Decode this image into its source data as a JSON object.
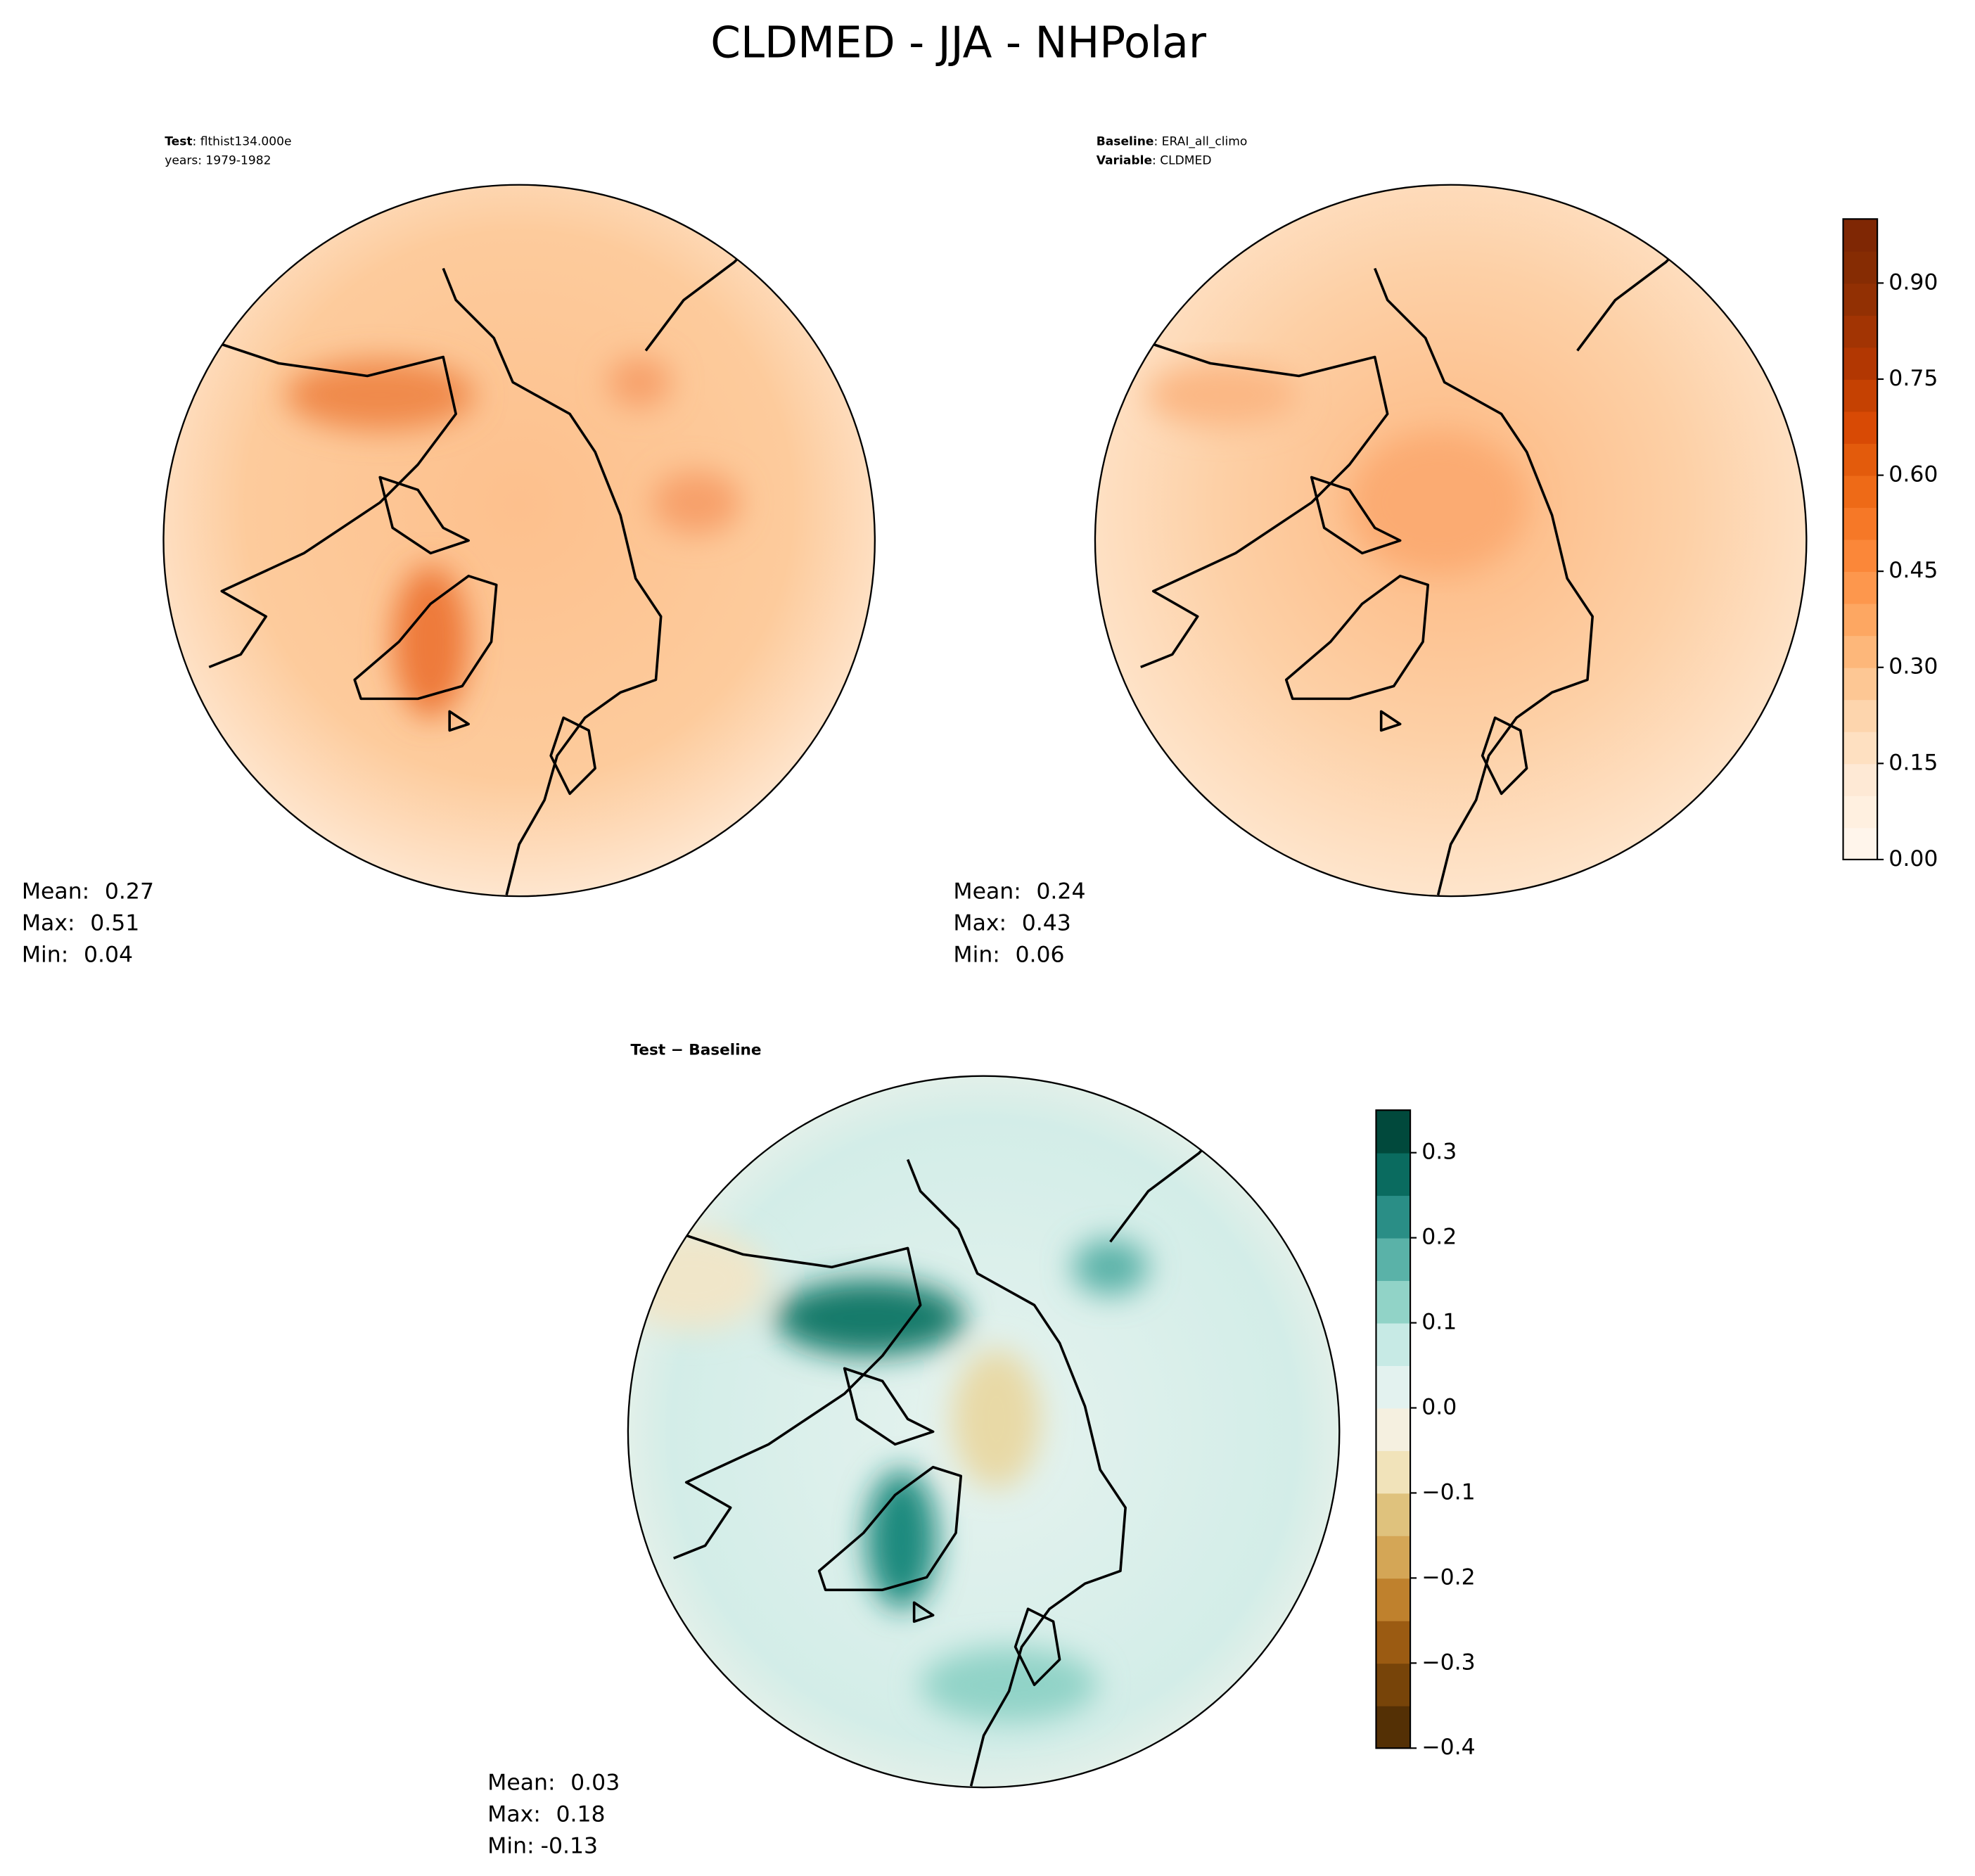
{
  "title": "CLDMED - JJA - NHPolar",
  "chart_data": [
    {
      "type": "map",
      "header": [
        {
          "key": "Test",
          "text": ": flthist134.000e"
        },
        {
          "text": "years: 1979-1982"
        }
      ],
      "stats": [
        {
          "label": "Mean:",
          "value": 0.27
        },
        {
          "label": "Max:",
          "value": 0.51
        },
        {
          "label": "Min:",
          "value": 0.04
        }
      ]
    },
    {
      "type": "map",
      "header": [
        {
          "key": "Baseline",
          "text": ": ERAI_all_climo"
        },
        {
          "key": "Variable",
          "text": ": CLDMED"
        }
      ],
      "stats": [
        {
          "label": "Mean:",
          "value": 0.24
        },
        {
          "label": "Max:",
          "value": 0.43
        },
        {
          "label": "Min:",
          "value": 0.06
        }
      ],
      "colorbar": {
        "ylim": [
          0,
          1.0
        ],
        "yticks": [
          {
            "value": 0,
            "label": "0.00"
          },
          {
            "value": 0.15,
            "label": "0.15"
          },
          {
            "value": 0.3,
            "label": "0.30"
          },
          {
            "value": 0.45,
            "label": "0.45"
          },
          {
            "value": 0.6,
            "label": "0.60"
          },
          {
            "value": 0.75,
            "label": "0.75"
          },
          {
            "value": 0.9,
            "label": "0.90"
          }
        ],
        "colors": [
          "#fff5eb",
          "#fff0e0",
          "#fee9d5",
          "#fee0c1",
          "#fdd5ad",
          "#fdc794",
          "#fdb77a",
          "#fda762",
          "#fd974d",
          "#fb8739",
          "#f67827",
          "#ee6a17",
          "#e35b0c",
          "#d84a05",
          "#c54102",
          "#b23702",
          "#a23403",
          "#923003",
          "#862c03",
          "#7f2704"
        ]
      }
    },
    {
      "type": "map",
      "title": "Test − Baseline",
      "stats": [
        {
          "label": "Mean:",
          "value": 0.03
        },
        {
          "label": "Max:",
          "value": 0.18
        },
        {
          "label": "Min:",
          "value": -0.13
        }
      ],
      "colorbar": {
        "ylim": [
          -0.4,
          0.35
        ],
        "yticks": [
          {
            "value": -0.4,
            "label": "−0.4"
          },
          {
            "value": -0.3,
            "label": "−0.3"
          },
          {
            "value": -0.2,
            "label": "−0.2"
          },
          {
            "value": -0.1,
            "label": "−0.1"
          },
          {
            "value": 0,
            "label": "0.0"
          },
          0.1,
          0.2,
          0.3
        ],
        "colors": [
          "#543005",
          "#774409",
          "#9b5b12",
          "#bf812d",
          "#d4a656",
          "#dfc27d",
          "#f1e3ba",
          "#f5f0e0",
          "#e3f2ef",
          "#c7eae5",
          "#91d3c7",
          "#5ab2a8",
          "#2a8e86",
          "#0a6b5f",
          "#01493c"
        ]
      }
    }
  ]
}
